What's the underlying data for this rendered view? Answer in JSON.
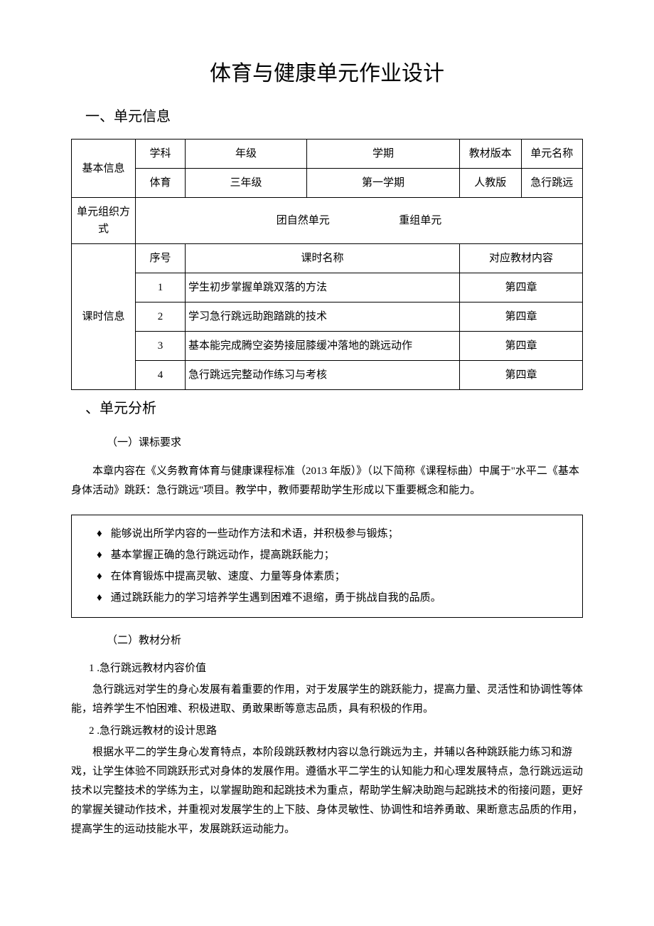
{
  "title": "体育与健康单元作业设计",
  "section1_heading": "一、单元信息",
  "table1": {
    "row1_label": "基本信息",
    "headers": {
      "subject": "学科",
      "grade": "年级",
      "semester": "学期",
      "textbook_ver": "教材版本",
      "unit_name": "单元名称"
    },
    "values": {
      "subject": "体育",
      "grade": "三年级",
      "semester": "第一学期",
      "textbook_ver": "人教版",
      "unit_name": "急行跳远"
    },
    "row3_label": "单元组织方式",
    "unit_org_1": "团自然单元",
    "unit_org_2": "重组单元",
    "lesson_info_label": "课时信息",
    "lesson_headers": {
      "seq": "序号",
      "name": "课时名称",
      "content": "对应教材内容"
    },
    "lessons": [
      {
        "seq": "1",
        "name": "学生初步掌握单跳双落的方法",
        "content": "第四章"
      },
      {
        "seq": "2",
        "name": "学习急行跳远助跑踏跳的技术",
        "content": "第四章"
      },
      {
        "seq": "3",
        "name": "基本能完成腾空姿势接屈膝缓冲落地的跳远动作",
        "content": "第四章"
      },
      {
        "seq": "4",
        "name": "急行跳远完整动作练习与考核",
        "content": "第四章"
      }
    ]
  },
  "section2_heading": "、单元分析",
  "sub1_heading": "（一）课标要求",
  "para1": "本章内容在《义务教育体育与健康课程标准（2013 年版）》（以下简称《课程标曲）中属于\"水平二《基本身体活动》跳跃：急行跳远\"项目。教学中，教师要帮助学生形成以下重要概念和能力。",
  "bullets": [
    "能够说出所学内容的一些动作方法和术语，并积极参与锻炼；",
    "基本掌握正确的急行跳远动作，提高跳跃能力；",
    "在体育锻炼中提高灵敏、速度、力量等身体素质；",
    "通过跳跃能力的学习培养学生遇到困难不退缩，勇于挑战自我的品质。"
  ],
  "sub2_heading": "（二）教材分析",
  "item1_heading": "1 .急行跳远教材内容价值",
  "para2": "急行跳远对学生的身心发展有着重要的作用，对于发展学生的跳跃能力，提高力量、灵活性和协调性等体能，培养学生不怕困难、积极进取、勇敢果断等意志品质，具有积极的作用。",
  "item2_heading": "2 .急行跳远教材的设计思路",
  "para3": "根据水平二的学生身心发育特点，本阶段跳跃教材内容以急行跳远为主，并辅以各种跳跃能力练习和游戏，让学生体验不同跳跃形式对身体的发展作用。遵循水平二学生的认知能力和心理发展特点，急行跳远运动技术以完整技术的学练为主，以掌握助跑和起跳技术为重点，帮助学生解决助跑与起跳技术的衔接问题，更好的掌握关键动作技术，并重视对发展学生的上下肢、身体灵敏性、协调性和培养勇敢、果断意志品质的作用，提高学生的运动技能水平，发展跳跃运动能力。",
  "diamond": "♦"
}
